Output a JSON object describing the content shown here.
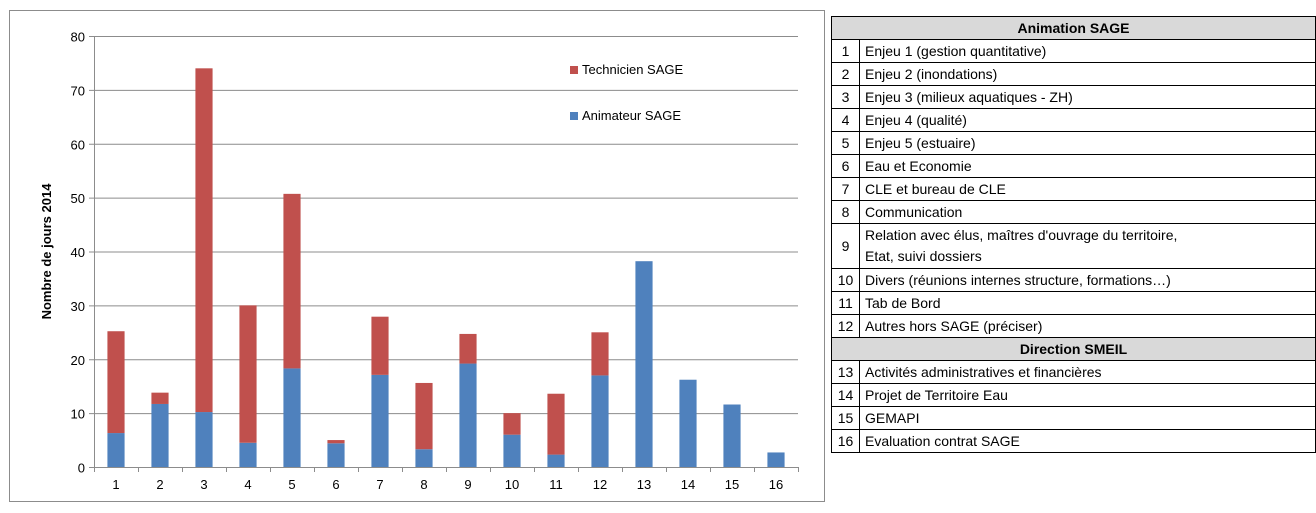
{
  "chart_data": {
    "type": "bar",
    "stacked": true,
    "categories": [
      "1",
      "2",
      "3",
      "4",
      "5",
      "6",
      "7",
      "8",
      "9",
      "10",
      "11",
      "12",
      "13",
      "14",
      "15",
      "16"
    ],
    "series": [
      {
        "name": "Animateur SAGE",
        "color": "#4f81bd",
        "values": [
          6.3,
          11.7,
          10.2,
          4.5,
          18.3,
          4.4,
          17.1,
          3.3,
          19.2,
          6.0,
          2.3,
          17.0,
          38.2,
          16.2,
          11.6,
          2.7
        ]
      },
      {
        "name": "Technicien SAGE",
        "color": "#c0504d",
        "values": [
          18.9,
          2.1,
          63.8,
          25.5,
          32.4,
          0.6,
          10.8,
          12.3,
          5.5,
          4.0,
          11.3,
          8.0,
          0,
          0,
          0,
          0
        ]
      }
    ],
    "ylabel": "Nombre de jours 2014",
    "ylim": [
      0,
      80
    ],
    "yticks": [
      0,
      10,
      20,
      30,
      40,
      50,
      60,
      70,
      80
    ],
    "grid": true,
    "legend_position": "top-right",
    "legend_order": [
      "Technicien SAGE",
      "Animateur SAGE"
    ]
  },
  "table": {
    "sections": [
      {
        "title": "Animation SAGE",
        "rows": [
          {
            "num": "1",
            "label": "Enjeu 1 (gestion quantitative)"
          },
          {
            "num": "2",
            "label": "Enjeu 2 (inondations)"
          },
          {
            "num": "3",
            "label": "Enjeu 3 (milieux aquatiques - ZH)"
          },
          {
            "num": "4",
            "label": "Enjeu 4 (qualité)"
          },
          {
            "num": "5",
            "label": "Enjeu 5 (estuaire)"
          },
          {
            "num": "6",
            "label": "Eau et Economie"
          },
          {
            "num": "7",
            "label": "CLE et bureau de CLE"
          },
          {
            "num": "8",
            "label": "Communication"
          },
          {
            "num": "9",
            "label": "Relation avec élus, maîtres d'ouvrage du territoire,",
            "label2": "Etat, suivi dossiers"
          },
          {
            "num": "10",
            "label": "Divers (réunions internes structure, formations…)"
          },
          {
            "num": "11",
            "label": "Tab de Bord"
          },
          {
            "num": "12",
            "label": "Autres hors SAGE (préciser)"
          }
        ]
      },
      {
        "title": "Direction SMEIL",
        "rows": [
          {
            "num": "13",
            "label": "Activités administratives et financières"
          },
          {
            "num": "14",
            "label": "Projet de Territoire Eau"
          },
          {
            "num": "15",
            "label": "GEMAPI"
          },
          {
            "num": "16",
            "label": "Evaluation contrat SAGE"
          }
        ]
      }
    ]
  }
}
